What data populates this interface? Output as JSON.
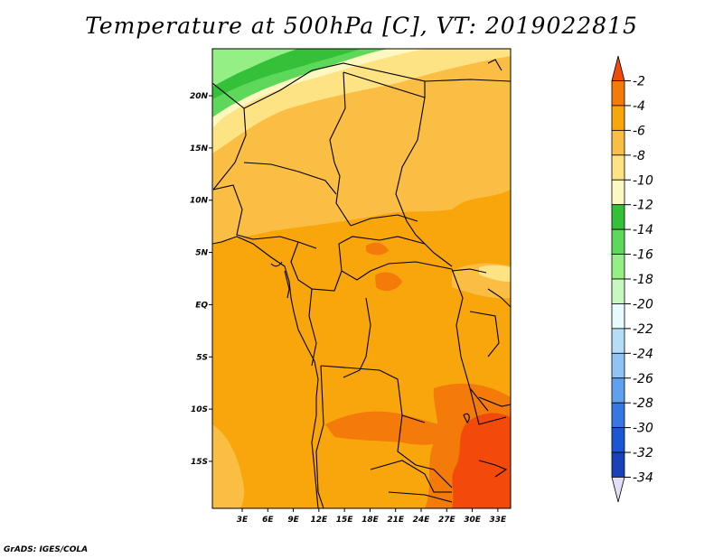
{
  "title": "Temperature at 500hPa [C], VT: 2019022815",
  "credit": "GrADS: IGES/COLA",
  "map": {
    "lon_range": [
      -0.5,
      34.5
    ],
    "lat_range": [
      -19.5,
      24.5
    ],
    "lon_ticks": [
      "3E",
      "6E",
      "9E",
      "12E",
      "15E",
      "18E",
      "21E",
      "24E",
      "27E",
      "30E",
      "33E"
    ],
    "lat_ticks": [
      "20N",
      "15N",
      "10N",
      "5N",
      "EQ",
      "5S",
      "10S",
      "15S"
    ]
  },
  "colorbar": {
    "labels": [
      "-2",
      "-4",
      "-6",
      "-8",
      "-10",
      "-12",
      "-14",
      "-16",
      "-18",
      "-20",
      "-22",
      "-24",
      "-26",
      "-28",
      "-30",
      "-32",
      "-34"
    ],
    "colors": [
      "#f34a0c",
      "#f47a0a",
      "#f9a60d",
      "#fbbe44",
      "#fde384",
      "#fdf7c0",
      "#34c139",
      "#5ed85a",
      "#94ef85",
      "#c7f8c0",
      "#e6fbfd",
      "#b6ddf8",
      "#8fc4f6",
      "#5fa0ef",
      "#3677e3",
      "#1d56d2",
      "#1843b8",
      "#101b7a",
      "#e2e0f8"
    ]
  }
}
